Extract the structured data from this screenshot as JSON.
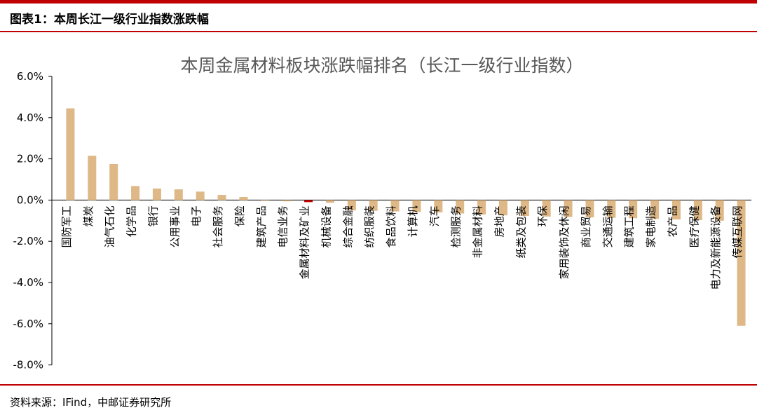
{
  "header": {
    "title": "图表1：本周长江一级行业指数涨跌幅"
  },
  "footer": {
    "source": "资料来源：IFind，中邮证券研究所"
  },
  "colors": {
    "accent": "#c00000",
    "bar": "#deb887",
    "highlight_bar": "#c00000"
  },
  "chart_data": {
    "type": "bar",
    "title": "本周金属材料板块涨跌幅排名（长江一级行业指数）",
    "xlabel": "",
    "ylabel": "",
    "ylim": [
      -8.0,
      6.0
    ],
    "yticks": [
      "6.0%",
      "4.0%",
      "2.0%",
      "0.0%",
      "-2.0%",
      "-4.0%",
      "-6.0%",
      "-8.0%"
    ],
    "grid": false,
    "highlight": "金属材料及矿业",
    "categories": [
      "国防军工",
      "煤炭",
      "油气石化",
      "化学品",
      "银行",
      "公用事业",
      "电子",
      "社会服务",
      "保险",
      "建筑产品",
      "电信业务",
      "金属材料及矿业",
      "机械设备",
      "综合金融",
      "纺织服装",
      "食品饮料",
      "计算机",
      "汽车",
      "检测服务",
      "非金属材料",
      "房地产",
      "纸类及包装",
      "环保",
      "家用装饰及休闲",
      "商业贸易",
      "交通运输",
      "建筑工程",
      "家电制造",
      "农产品",
      "医疗保健",
      "电力及新能源设备",
      "传媒互联网"
    ],
    "values": [
      4.45,
      2.15,
      1.75,
      0.68,
      0.56,
      0.52,
      0.41,
      0.25,
      0.15,
      -0.03,
      -0.06,
      -0.1,
      -0.13,
      -0.5,
      -0.52,
      -0.55,
      -0.58,
      -0.6,
      -0.65,
      -0.7,
      -0.74,
      -0.77,
      -0.8,
      -0.82,
      -0.84,
      -0.86,
      -0.88,
      -0.91,
      -0.94,
      -0.97,
      -1.0,
      -6.1
    ]
  }
}
